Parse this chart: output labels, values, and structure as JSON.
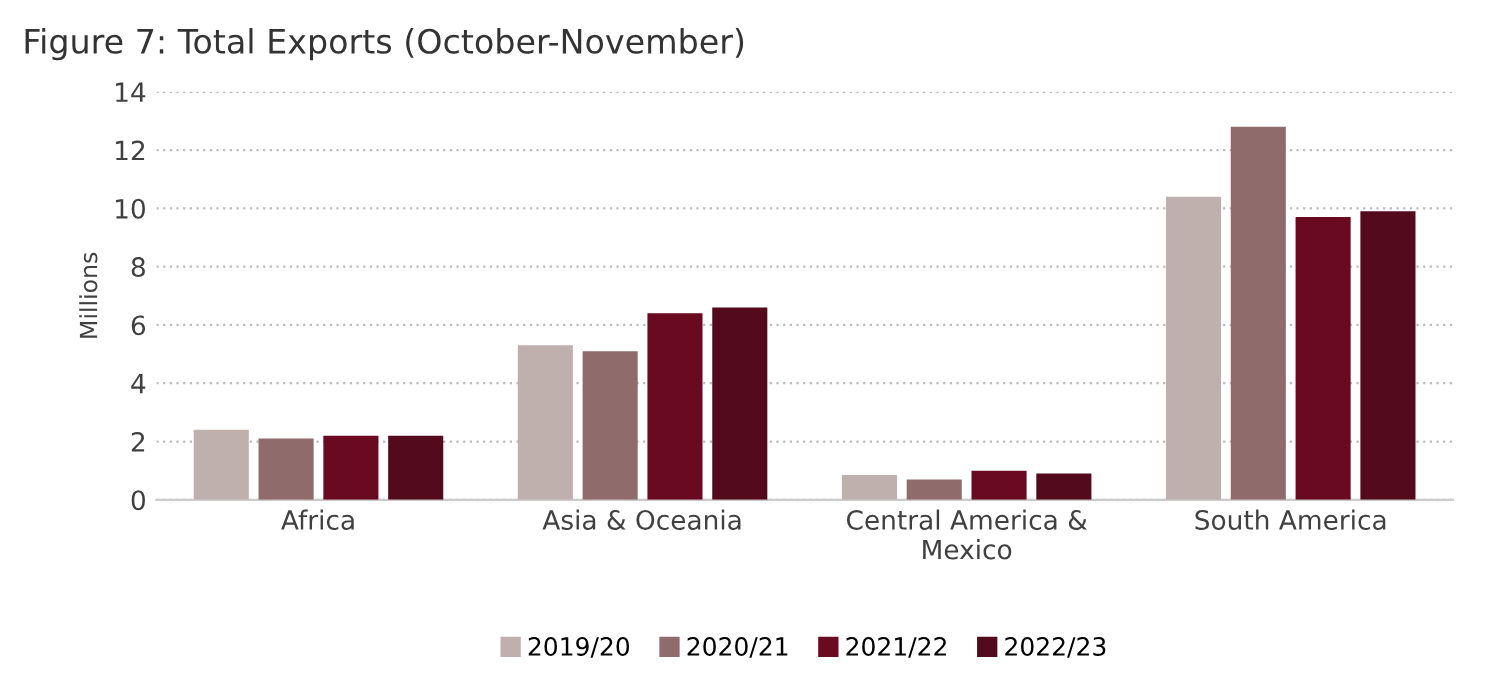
{
  "chart_data": {
    "type": "bar",
    "title": "Figure 7: Total Exports (October-November)",
    "ylabel": "Millions",
    "categories": [
      "Africa",
      "Asia & Oceania",
      "Central America &\nMexico",
      "South America"
    ],
    "series": [
      {
        "name": "2019/20",
        "color": "#bfb0ae",
        "values": [
          2.4,
          5.3,
          0.85,
          10.4
        ]
      },
      {
        "name": "2020/21",
        "color": "#8f6b6b",
        "values": [
          2.1,
          5.1,
          0.7,
          12.8
        ]
      },
      {
        "name": "2021/22",
        "color": "#6a0a21",
        "values": [
          2.2,
          6.4,
          1.0,
          9.7
        ]
      },
      {
        "name": "2022/23",
        "color": "#520a1c",
        "values": [
          2.2,
          6.6,
          0.9,
          9.9
        ]
      }
    ],
    "ylim": [
      0,
      14
    ],
    "yticks": [
      0,
      2,
      4,
      6,
      8,
      10,
      12,
      14
    ],
    "grid": "y",
    "legend": "bottom"
  }
}
